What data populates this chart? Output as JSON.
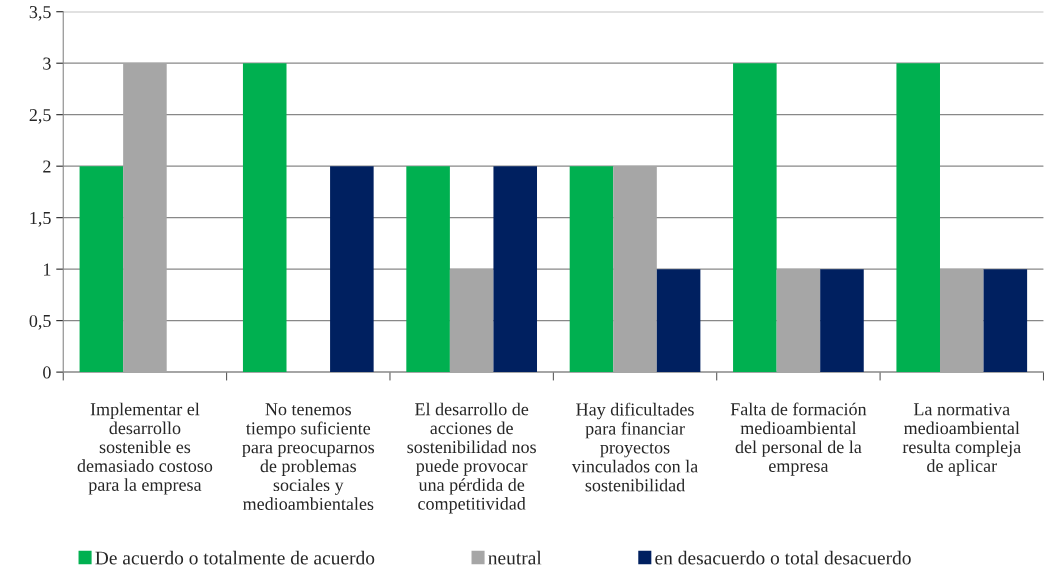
{
  "chart_data": {
    "type": "bar",
    "categories": [
      "Implementar el\ndesarrollo\nsostenible es\ndemasiado costoso\npara la empresa",
      "No tenemos\ntiempo suficiente\npara preocuparnos\nde problemas\nsociales y\nmedioambientales",
      "El desarrollo de\nacciones de\nsostenibilidad nos\npuede provocar\nuna pérdida de\ncompetitividad",
      "Hay dificultades\npara financiar\nproyectos\nvinculados con la\nsostenibilidad",
      "Falta de formación\nmedioambiental\ndel personal de la\nempresa",
      "La normativa\nmedioambiental\nresulta compleja\nde aplicar"
    ],
    "series": [
      {
        "name": "De acuerdo o totalmente de acuerdo",
        "color": "#00b050",
        "values": [
          2,
          3,
          2,
          2,
          3,
          3
        ]
      },
      {
        "name": "neutral",
        "color": "#a6a6a6",
        "values": [
          3,
          null,
          1,
          2,
          1,
          1
        ]
      },
      {
        "name": "en desacuerdo o total desacuerdo",
        "color": "#002060",
        "values": [
          null,
          2,
          2,
          1,
          1,
          1
        ]
      }
    ],
    "ylim": [
      0,
      3.5
    ],
    "yticks": [
      {
        "value": 0,
        "label": "0"
      },
      {
        "value": 0.5,
        "label": "0,5"
      },
      {
        "value": 1,
        "label": "1"
      },
      {
        "value": 1.5,
        "label": "1,5"
      },
      {
        "value": 2,
        "label": "2"
      },
      {
        "value": 2.5,
        "label": "2,5"
      },
      {
        "value": 3,
        "label": "3"
      },
      {
        "value": 3.5,
        "label": "3,5"
      }
    ],
    "grid": "y",
    "legend": "bottom"
  }
}
